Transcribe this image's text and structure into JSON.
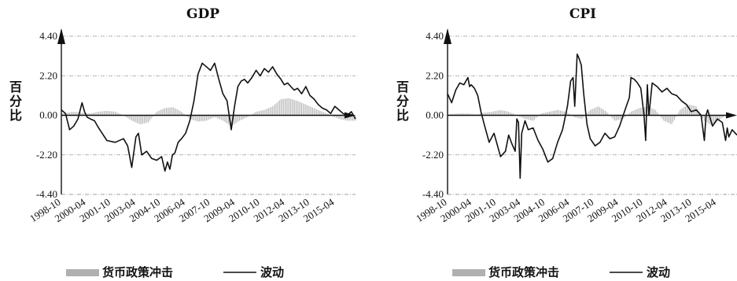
{
  "chart_data": [
    {
      "type": "line",
      "title": "GDP",
      "ylabel": "百分比",
      "ylim": [
        -4.4,
        4.4
      ],
      "yticks": [
        "4.40",
        "2.20",
        "0.00",
        "-2.20",
        "-4.40"
      ],
      "ytick_values": [
        4.4,
        2.2,
        0,
        -2.2,
        -4.4
      ],
      "xlim": [
        1998.75,
        2016.5
      ],
      "xticks": [
        "1998-10",
        "2000-04",
        "2001-10",
        "2003-04",
        "2004-10",
        "2006-04",
        "2007-10",
        "2009-04",
        "2010-10",
        "2012-04",
        "2013-10",
        "2015-04"
      ],
      "grid": "horizontal dash-dot",
      "series": [
        {
          "name": "货币政策冲击",
          "kind": "area",
          "color": "#b0b0b0",
          "x": [
            1998.75,
            1999.5,
            2000.0,
            2000.5,
            2001.0,
            2001.5,
            2002.0,
            2002.5,
            2003.0,
            2003.5,
            2004.0,
            2004.5,
            2005.0,
            2005.5,
            2006.0,
            2006.5,
            2007.0,
            2007.5,
            2008.0,
            2008.5,
            2009.0,
            2009.5,
            2010.0,
            2010.5,
            2011.0,
            2011.5,
            2012.0,
            2012.5,
            2013.0,
            2013.5,
            2014.0,
            2014.5,
            2015.0,
            2015.5,
            2016.0,
            2016.5
          ],
          "y": [
            0.1,
            0.2,
            0.15,
            0.1,
            0.2,
            0.25,
            0.2,
            0.0,
            -0.3,
            -0.5,
            -0.4,
            0.2,
            0.4,
            0.45,
            0.2,
            -0.2,
            -0.35,
            -0.3,
            -0.1,
            -0.3,
            -0.6,
            -0.3,
            -0.1,
            0.2,
            0.3,
            0.5,
            0.9,
            0.95,
            0.8,
            0.6,
            0.4,
            0.2,
            0.0,
            -0.2,
            -0.3,
            -0.3
          ]
        },
        {
          "name": "波动",
          "kind": "line",
          "color": "#111111",
          "x": [
            1998.75,
            1999.0,
            1999.25,
            1999.5,
            1999.75,
            2000.0,
            2000.15,
            2000.3,
            2000.5,
            2000.75,
            2001.0,
            2001.5,
            2002.0,
            2002.5,
            2002.75,
            2003.0,
            2003.25,
            2003.4,
            2003.6,
            2003.9,
            2004.2,
            2004.5,
            2004.8,
            2005.0,
            2005.15,
            2005.3,
            2005.45,
            2005.6,
            2005.8,
            2006.0,
            2006.25,
            2006.5,
            2006.75,
            2007.0,
            2007.25,
            2007.5,
            2007.75,
            2008.0,
            2008.25,
            2008.5,
            2008.75,
            2009.0,
            2009.2,
            2009.4,
            2009.6,
            2009.8,
            2010.0,
            2010.25,
            2010.5,
            2010.75,
            2011.0,
            2011.25,
            2011.5,
            2011.75,
            2012.0,
            2012.2,
            2012.4,
            2012.6,
            2012.8,
            2013.0,
            2013.25,
            2013.5,
            2013.75,
            2014.0,
            2014.25,
            2014.5,
            2014.75,
            2015.0,
            2015.25,
            2015.5,
            2015.75,
            2016.0,
            2016.25,
            2016.5
          ],
          "y": [
            0.3,
            0.1,
            -0.8,
            -0.6,
            -0.2,
            0.7,
            0.2,
            -0.1,
            -0.2,
            -0.3,
            -0.7,
            -1.4,
            -1.5,
            -1.3,
            -1.7,
            -2.9,
            -1.2,
            -1.0,
            -2.2,
            -2.0,
            -2.4,
            -2.5,
            -2.3,
            -3.1,
            -2.6,
            -3.0,
            -2.2,
            -2.1,
            -1.5,
            -1.3,
            -1.0,
            -0.3,
            0.8,
            2.3,
            2.9,
            2.7,
            2.5,
            2.9,
            2.0,
            1.2,
            0.8,
            -0.8,
            0.5,
            1.6,
            1.9,
            2.0,
            1.8,
            2.1,
            2.5,
            2.2,
            2.6,
            2.4,
            2.7,
            2.3,
            2.0,
            1.7,
            1.8,
            1.6,
            1.4,
            1.5,
            1.2,
            1.6,
            1.1,
            0.9,
            0.6,
            0.4,
            0.3,
            0.1,
            0.5,
            0.3,
            0.1,
            0.0,
            0.2,
            -0.2
          ]
        }
      ]
    },
    {
      "type": "line",
      "title": "CPI",
      "ylabel": "百分比",
      "ylim": [
        -4.4,
        4.4
      ],
      "yticks": [
        "4.40",
        "2.20",
        "0.00",
        "-2.20",
        "-4.40"
      ],
      "ytick_values": [
        4.4,
        2.2,
        0,
        -2.2,
        -4.4
      ],
      "xlim": [
        1998.75,
        2016.5
      ],
      "xticks": [
        "1998-10",
        "2000-04",
        "2001-10",
        "2003-04",
        "2004-10",
        "2006-04",
        "2007-10",
        "2009-04",
        "2010-10",
        "2012-04",
        "2013-10",
        "2015-04"
      ],
      "grid": "horizontal dash-dot",
      "series": [
        {
          "name": "货币政策冲击",
          "kind": "area",
          "color": "#b0b0b0",
          "x": [
            1998.75,
            1999.5,
            2000.0,
            2000.5,
            2001.0,
            2001.5,
            2002.0,
            2002.5,
            2003.0,
            2003.5,
            2004.0,
            2004.5,
            2005.0,
            2005.5,
            2006.0,
            2006.5,
            2007.0,
            2007.5,
            2008.0,
            2008.5,
            2009.0,
            2009.5,
            2010.0,
            2010.5,
            2011.0,
            2011.5,
            2012.0,
            2012.5,
            2013.0,
            2013.5,
            2014.0,
            2014.5,
            2015.0,
            2015.5,
            2016.0,
            2016.5
          ],
          "y": [
            0.05,
            0.1,
            0.1,
            0.05,
            0.15,
            0.2,
            0.3,
            0.2,
            0.0,
            -0.2,
            -0.3,
            0.1,
            0.2,
            0.3,
            0.2,
            -0.1,
            -0.2,
            0.3,
            0.5,
            0.2,
            -0.3,
            -0.2,
            0.2,
            0.4,
            0.5,
            0.3,
            -0.3,
            -0.5,
            0.3,
            0.6,
            0.5,
            -0.3,
            -0.6,
            -0.2,
            0.1,
            0.0
          ]
        },
        {
          "name": "波动",
          "kind": "line",
          "color": "#111111",
          "x": [
            1998.75,
            1999.0,
            1999.25,
            1999.5,
            1999.75,
            2000.0,
            2000.1,
            2000.2,
            2000.4,
            2000.6,
            2000.8,
            2001.0,
            2001.3,
            2001.6,
            2002.0,
            2002.3,
            2002.5,
            2002.7,
            2002.9,
            2003.0,
            2003.1,
            2003.2,
            2003.3,
            2003.5,
            2003.7,
            2004.0,
            2004.3,
            2004.6,
            2004.9,
            2005.2,
            2005.5,
            2005.8,
            2006.1,
            2006.3,
            2006.45,
            2006.55,
            2006.7,
            2006.8,
            2006.95,
            2007.1,
            2007.3,
            2007.5,
            2007.8,
            2008.1,
            2008.4,
            2008.7,
            2009.0,
            2009.3,
            2009.6,
            2009.9,
            2010.0,
            2010.2,
            2010.4,
            2010.6,
            2010.8,
            2010.9,
            2011.0,
            2011.1,
            2011.3,
            2011.6,
            2011.9,
            2012.2,
            2012.5,
            2012.8,
            2013.1,
            2013.4,
            2013.7,
            2014.0,
            2014.3,
            2014.5,
            2014.6,
            2014.7,
            2015.0,
            2015.3,
            2015.6,
            2015.8,
            2015.9,
            2016.0,
            2016.2,
            2016.5
          ],
          "y": [
            1.2,
            0.7,
            1.4,
            1.8,
            1.7,
            2.1,
            1.6,
            1.7,
            1.5,
            1.1,
            0.2,
            -0.5,
            -1.5,
            -1.0,
            -2.3,
            -2.0,
            -1.1,
            -1.6,
            -2.0,
            -0.2,
            -0.4,
            -3.5,
            -1.0,
            -0.3,
            -0.8,
            -0.7,
            -1.4,
            -1.9,
            -2.6,
            -2.4,
            -1.5,
            -0.8,
            0.5,
            1.9,
            2.1,
            0.5,
            3.4,
            3.2,
            2.8,
            1.2,
            -0.5,
            -1.3,
            -1.7,
            -1.5,
            -1.0,
            -1.3,
            -1.2,
            -0.6,
            0.2,
            1.0,
            2.1,
            2.0,
            1.8,
            1.5,
            0.0,
            -1.4,
            1.7,
            0.0,
            1.8,
            1.6,
            1.3,
            1.5,
            1.2,
            1.1,
            0.8,
            0.6,
            0.2,
            0.3,
            0.0,
            -1.4,
            0.0,
            0.3,
            -0.6,
            -0.2,
            -0.4,
            -1.4,
            -0.7,
            -1.2,
            -0.8,
            -1.1
          ]
        }
      ]
    }
  ],
  "legend": [
    {
      "label": "货币政策冲击",
      "kind": "area",
      "color": "#b0b0b0"
    },
    {
      "label": "波动",
      "kind": "line",
      "color": "#111111"
    }
  ]
}
